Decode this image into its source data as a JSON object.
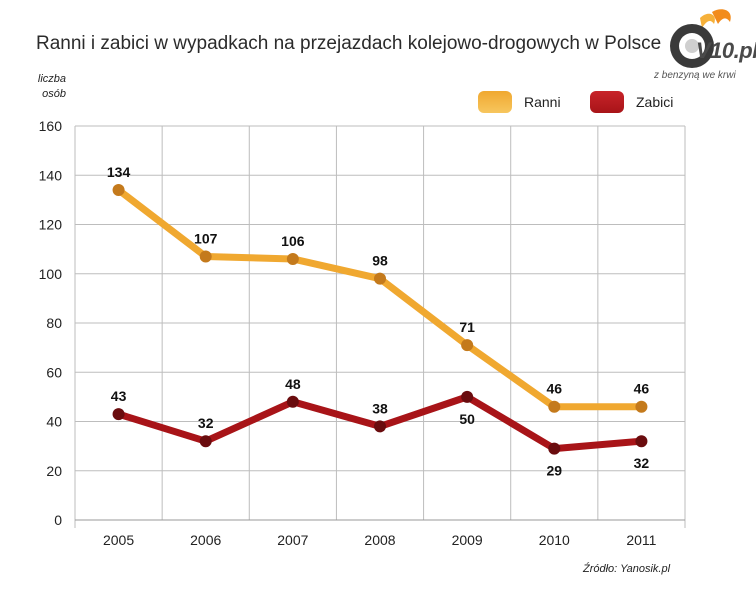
{
  "header": {
    "title": "Ranni i zabici w wypadkach na przejazdach kolejowo-drogowych w Polsce",
    "logo_text": "V10.pl",
    "logo_tagline": "z benzyną we krwi"
  },
  "footer": {
    "source": "Źródło: Yanosik.pl"
  },
  "colors": {
    "ranni": "#f0a830",
    "zabici": "#a81418",
    "grid": "#bdbdbd"
  },
  "chart_data": {
    "type": "line",
    "ylabel": "liczba osób",
    "ylabel_lines": [
      "liczba",
      "osób"
    ],
    "categories": [
      "2005",
      "2006",
      "2007",
      "2008",
      "2009",
      "2010",
      "2011"
    ],
    "ylim": [
      0,
      160
    ],
    "yticks": [
      "0",
      "20",
      "40",
      "60",
      "80",
      "100",
      "120",
      "140",
      "160"
    ],
    "grid": true,
    "legend_position": "top-right",
    "series": [
      {
        "name": "Ranni",
        "values": [
          134,
          107,
          106,
          98,
          71,
          46,
          46
        ]
      },
      {
        "name": "Zabici",
        "values": [
          43,
          32,
          48,
          38,
          50,
          29,
          32
        ]
      }
    ]
  }
}
